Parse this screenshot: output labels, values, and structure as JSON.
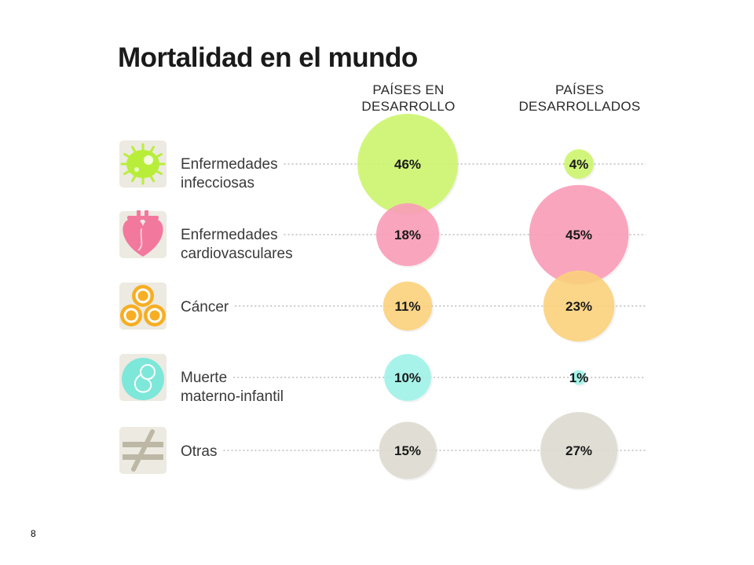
{
  "title": "Mortalidad en el mundo",
  "page_number": "8",
  "colors": {
    "infecciosas": "#cdf56e",
    "cardiovasculares": "#f99cb8",
    "cancer": "#fcd27c",
    "materno": "#9ff3e8",
    "otras": "#dedbd0",
    "icon_bg": "#eceae1"
  },
  "chart_data": {
    "type": "bubble",
    "title": "Mortalidad en el mundo",
    "unit": "%",
    "columns": [
      {
        "line1": "PAÍSES EN",
        "line2": "DESARROLLO"
      },
      {
        "line1": "PAÍSES",
        "line2": "DESARROLLADOS"
      }
    ],
    "categories": [
      {
        "key": "infecciosas",
        "icon": "virus-icon",
        "line1": "Enfermedades",
        "line2": "infecciosas",
        "values": [
          46,
          4
        ],
        "labels": [
          "46%",
          "4%"
        ]
      },
      {
        "key": "cardiovasculares",
        "icon": "heart-icon",
        "line1": "Enfermedades",
        "line2": "cardiovasculares",
        "values": [
          18,
          45
        ],
        "labels": [
          "18%",
          "45%"
        ]
      },
      {
        "key": "cancer",
        "icon": "cells-icon",
        "line1": "Cáncer",
        "line2": "",
        "values": [
          11,
          23
        ],
        "labels": [
          "11%",
          "23%"
        ]
      },
      {
        "key": "materno",
        "icon": "fetus-icon",
        "line1": "Muerte",
        "line2": "materno-infantil",
        "values": [
          10,
          1
        ],
        "labels": [
          "10%",
          "1%"
        ]
      },
      {
        "key": "otras",
        "icon": "not-equal-icon",
        "line1": "Otras",
        "line2": "",
        "values": [
          15,
          27
        ],
        "labels": [
          "15%",
          "27%"
        ]
      }
    ]
  }
}
